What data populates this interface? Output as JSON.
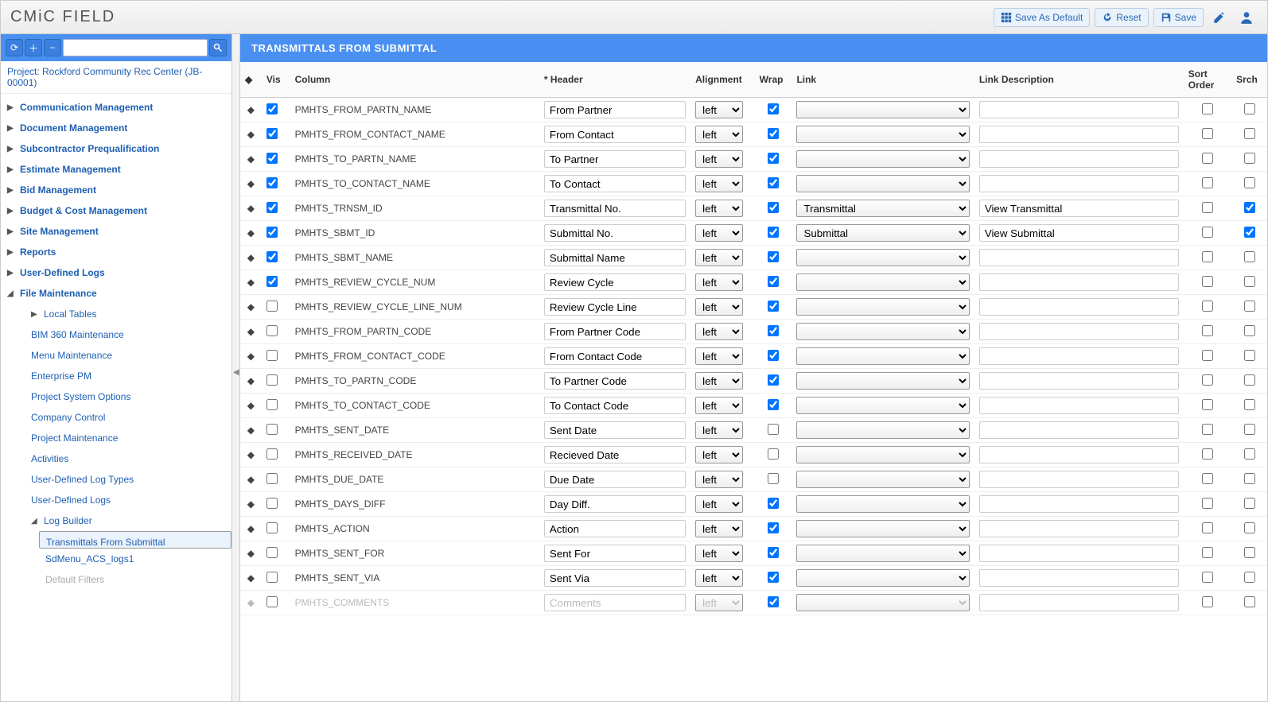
{
  "header": {
    "logo_text": "CMiC FIELD",
    "save_as_default": "Save As Default",
    "reset": "Reset",
    "save": "Save"
  },
  "sidebar": {
    "project_label": "Project: Rockford Community Rec Center (JB-00001)",
    "groups": [
      {
        "label": "Communication Management",
        "expanded": false
      },
      {
        "label": "Document Management",
        "expanded": false
      },
      {
        "label": "Subcontractor Prequalification",
        "expanded": false
      },
      {
        "label": "Estimate Management",
        "expanded": false
      },
      {
        "label": "Bid Management",
        "expanded": false
      },
      {
        "label": "Budget & Cost Management",
        "expanded": false
      },
      {
        "label": "Site Management",
        "expanded": false
      },
      {
        "label": "Reports",
        "expanded": false
      },
      {
        "label": "User-Defined Logs",
        "expanded": false
      },
      {
        "label": "File Maintenance",
        "expanded": true,
        "children": [
          {
            "label": "Local Tables",
            "type": "group"
          },
          {
            "label": "BIM 360 Maintenance"
          },
          {
            "label": "Menu Maintenance"
          },
          {
            "label": "Enterprise PM"
          },
          {
            "label": "Project System Options"
          },
          {
            "label": "Company Control"
          },
          {
            "label": "Project Maintenance"
          },
          {
            "label": "Activities"
          },
          {
            "label": "User-Defined Log Types"
          },
          {
            "label": "User-Defined Logs"
          },
          {
            "label": "Log Builder",
            "type": "group",
            "expanded": true,
            "children": [
              {
                "label": "Transmittals From Submittal",
                "selected": true
              },
              {
                "label": "SdMenu_ACS_logs1"
              },
              {
                "label": "Default Filters",
                "dim": true
              }
            ]
          }
        ]
      }
    ]
  },
  "content": {
    "title": "TRANSMITTALS FROM SUBMITTAL",
    "columns": {
      "vis": "Vis",
      "column": "Column",
      "header": "* Header",
      "alignment": "Alignment",
      "wrap": "Wrap",
      "link": "Link",
      "link_desc": "Link Description",
      "sort_order": "Sort Order",
      "srch": "Srch"
    },
    "rows": [
      {
        "vis": true,
        "column": "PMHTS_FROM_PARTN_NAME",
        "header": "From Partner",
        "align": "left",
        "wrap": true,
        "link": "",
        "desc": "",
        "sort": false,
        "srch": false
      },
      {
        "vis": true,
        "column": "PMHTS_FROM_CONTACT_NAME",
        "header": "From Contact",
        "align": "left",
        "wrap": true,
        "link": "",
        "desc": "",
        "sort": false,
        "srch": false
      },
      {
        "vis": true,
        "column": "PMHTS_TO_PARTN_NAME",
        "header": "To Partner",
        "align": "left",
        "wrap": true,
        "link": "",
        "desc": "",
        "sort": false,
        "srch": false
      },
      {
        "vis": true,
        "column": "PMHTS_TO_CONTACT_NAME",
        "header": "To Contact",
        "align": "left",
        "wrap": true,
        "link": "",
        "desc": "",
        "sort": false,
        "srch": false
      },
      {
        "vis": true,
        "column": "PMHTS_TRNSM_ID",
        "header": "Transmittal No.",
        "align": "left",
        "wrap": true,
        "link": "Transmittal",
        "desc": "View Transmittal",
        "sort": false,
        "srch": true
      },
      {
        "vis": true,
        "column": "PMHTS_SBMT_ID",
        "header": "Submittal No.",
        "align": "left",
        "wrap": true,
        "link": "Submittal",
        "desc": "View Submittal",
        "sort": false,
        "srch": true
      },
      {
        "vis": true,
        "column": "PMHTS_SBMT_NAME",
        "header": "Submittal Name",
        "align": "left",
        "wrap": true,
        "link": "",
        "desc": "",
        "sort": false,
        "srch": false
      },
      {
        "vis": true,
        "column": "PMHTS_REVIEW_CYCLE_NUM",
        "header": "Review Cycle",
        "align": "left",
        "wrap": true,
        "link": "",
        "desc": "",
        "sort": false,
        "srch": false
      },
      {
        "vis": false,
        "column": "PMHTS_REVIEW_CYCLE_LINE_NUM",
        "header": "Review Cycle Line",
        "align": "left",
        "wrap": true,
        "link": "",
        "desc": "",
        "sort": false,
        "srch": false
      },
      {
        "vis": false,
        "column": "PMHTS_FROM_PARTN_CODE",
        "header": "From Partner Code",
        "align": "left",
        "wrap": true,
        "link": "",
        "desc": "",
        "sort": false,
        "srch": false
      },
      {
        "vis": false,
        "column": "PMHTS_FROM_CONTACT_CODE",
        "header": "From Contact Code",
        "align": "left",
        "wrap": true,
        "link": "",
        "desc": "",
        "sort": false,
        "srch": false
      },
      {
        "vis": false,
        "column": "PMHTS_TO_PARTN_CODE",
        "header": "To Partner Code",
        "align": "left",
        "wrap": true,
        "link": "",
        "desc": "",
        "sort": false,
        "srch": false
      },
      {
        "vis": false,
        "column": "PMHTS_TO_CONTACT_CODE",
        "header": "To Contact Code",
        "align": "left",
        "wrap": true,
        "link": "",
        "desc": "",
        "sort": false,
        "srch": false
      },
      {
        "vis": false,
        "column": "PMHTS_SENT_DATE",
        "header": "Sent Date",
        "align": "left",
        "wrap": false,
        "link": "",
        "desc": "",
        "sort": false,
        "srch": false
      },
      {
        "vis": false,
        "column": "PMHTS_RECEIVED_DATE",
        "header": "Recieved Date",
        "align": "left",
        "wrap": false,
        "link": "",
        "desc": "",
        "sort": false,
        "srch": false
      },
      {
        "vis": false,
        "column": "PMHTS_DUE_DATE",
        "header": "Due Date",
        "align": "left",
        "wrap": false,
        "link": "",
        "desc": "",
        "sort": false,
        "srch": false
      },
      {
        "vis": false,
        "column": "PMHTS_DAYS_DIFF",
        "header": "Day Diff.",
        "align": "left",
        "wrap": true,
        "link": "",
        "desc": "",
        "sort": false,
        "srch": false
      },
      {
        "vis": false,
        "column": "PMHTS_ACTION",
        "header": "Action",
        "align": "left",
        "wrap": true,
        "link": "",
        "desc": "",
        "sort": false,
        "srch": false
      },
      {
        "vis": false,
        "column": "PMHTS_SENT_FOR",
        "header": "Sent For",
        "align": "left",
        "wrap": true,
        "link": "",
        "desc": "",
        "sort": false,
        "srch": false
      },
      {
        "vis": false,
        "column": "PMHTS_SENT_VIA",
        "header": "Sent Via",
        "align": "left",
        "wrap": true,
        "link": "",
        "desc": "",
        "sort": false,
        "srch": false
      },
      {
        "vis": false,
        "column": "PMHTS_COMMENTS",
        "header": "Comments",
        "align": "left",
        "wrap": true,
        "link": "",
        "desc": "",
        "sort": false,
        "srch": false,
        "faded": true
      }
    ]
  }
}
